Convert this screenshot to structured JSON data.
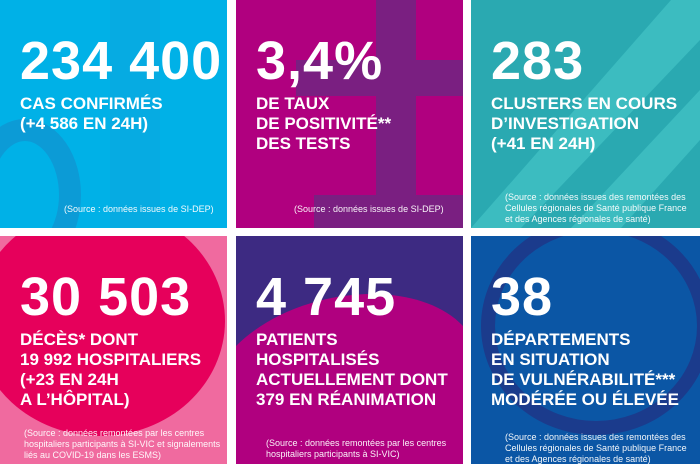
{
  "tiles": [
    {
      "number": "234 400",
      "label": "CAS CONFIRMÉS\n(+4 586 EN 24H)",
      "source": "(Source : données issues de SI-DEP)",
      "colors": {
        "bg": "#00b1e7",
        "accent": "#0c9bd6"
      }
    },
    {
      "number": "3,4%",
      "label": "DE TAUX\nDE POSITIVITÉ**\nDES TESTS",
      "source": "(Source : données issues de SI-DEP)",
      "colors": {
        "bg": "#b0007f",
        "accent": "#7a1f81"
      }
    },
    {
      "number": "283",
      "label": "CLUSTERS EN COURS\nD’INVESTIGATION\n(+41 EN 24H)",
      "source": "(Source : données issues des remontées des\nCellules régionales de Santé publique France\net des Agences régionales de santé)",
      "colors": {
        "bg": "#2aa9b1",
        "accent": "#3cbcc0"
      }
    },
    {
      "number": "30 503",
      "label": "DÉCÈS* DONT\n19 992 HOSPITALIERS\n(+23 EN 24H\nA L’HÔPITAL)",
      "source": "(Source : données remontées par les centres\nhospitaliers participants à SI-VIC et signalements\nliés au COVID-19 dans les ESMS)",
      "colors": {
        "bg": "#f06a9f",
        "accent": "#e6005b"
      }
    },
    {
      "number": "4 745",
      "label": "PATIENTS\nHOSPITALISÉS\nACTUELLEMENT DONT\n379 EN RÉANIMATION",
      "source": "(Source : données remontées par les centres\nhospitaliers participants à SI-VIC)",
      "colors": {
        "bg": "#3d2a82",
        "accent": "#b0007f"
      }
    },
    {
      "number": "38",
      "label": "DÉPARTEMENTS\nEN SITUATION\nDE VULNÉRABILITÉ***\nMODÉRÉE OU ÉLEVÉE",
      "source": "(Source : données issues des remontées des\nCellules régionales de Santé publique France\net des Agences régionales de santé)",
      "colors": {
        "bg": "#0b56a5",
        "accent": "#1b3b8c"
      }
    }
  ]
}
